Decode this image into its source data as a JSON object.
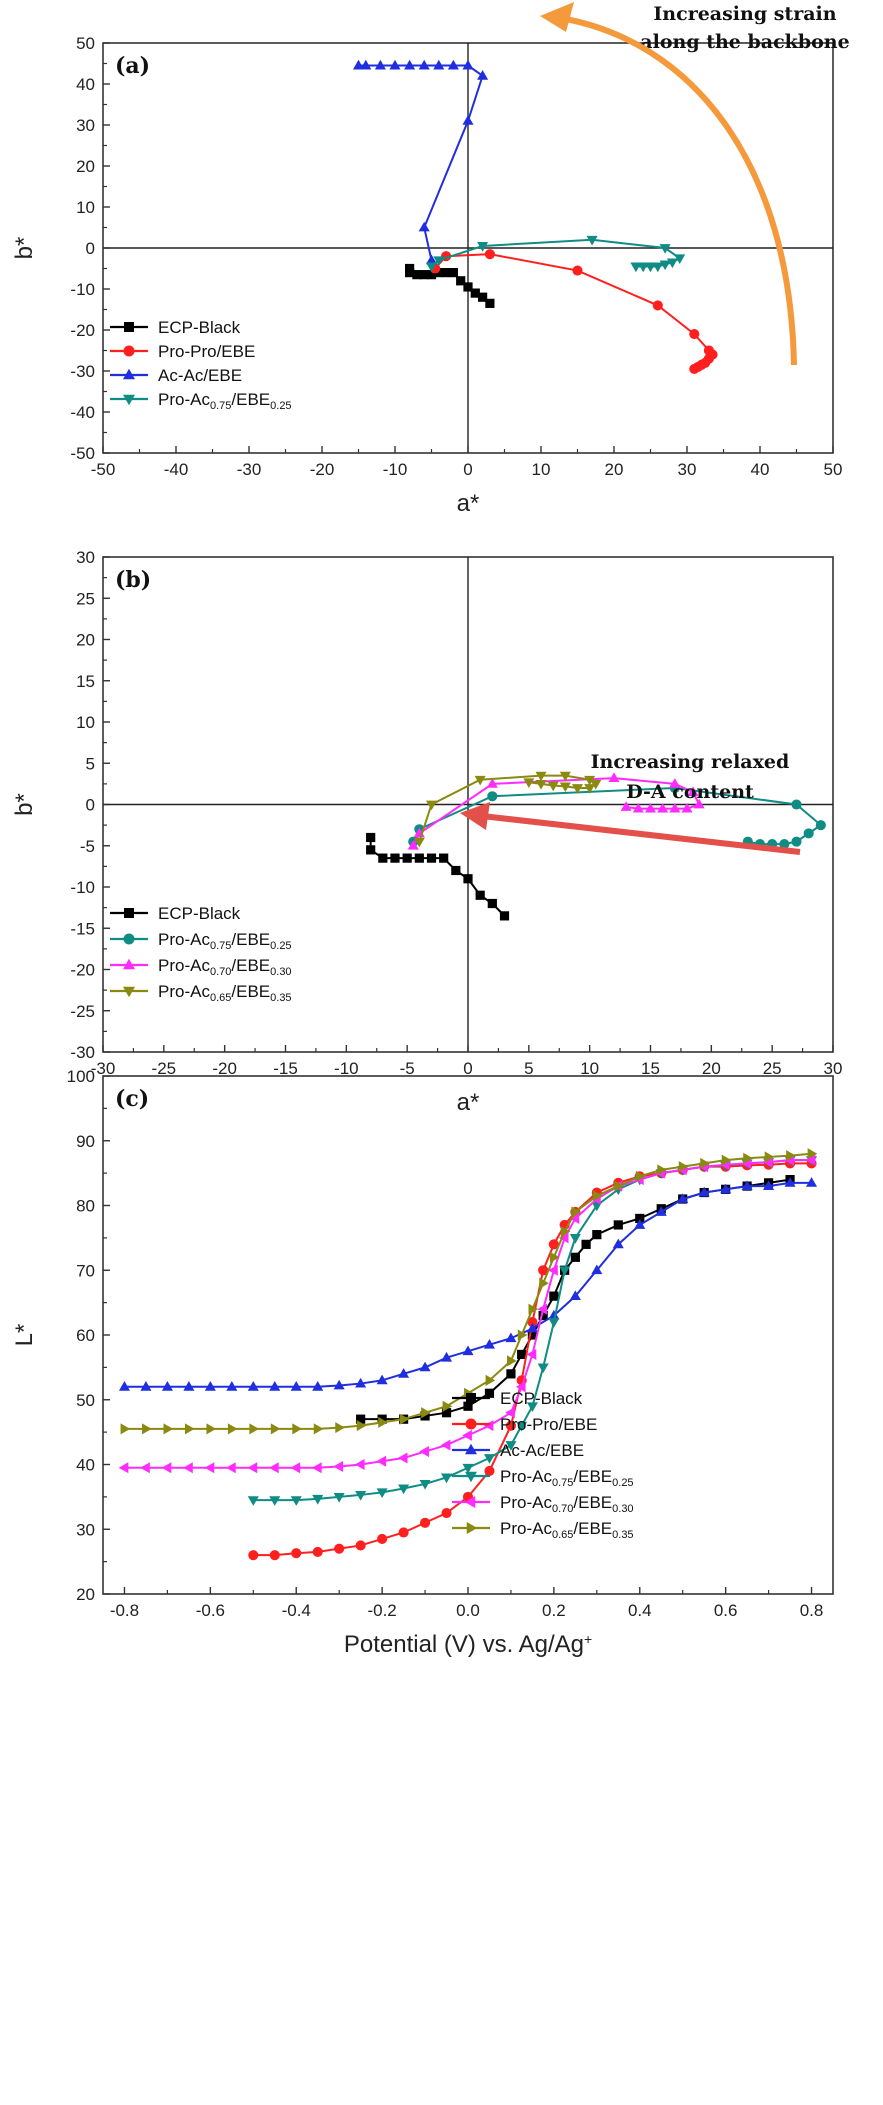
{
  "colors": {
    "ecp": "#000000",
    "pro_pro": "#ff1f1f",
    "ac_ac": "#1f2fe0",
    "pro_ac_75": "#0f8c84",
    "pro_ac_70": "#ff2bff",
    "pro_ac_65": "#8a8a10",
    "annot_arrow_a": "#f59a3c",
    "annot_arrow_b": "#e3504a"
  },
  "chart_data": [
    {
      "type": "scatter",
      "panel_label": "(a)",
      "xlabel": "a*",
      "ylabel": "b*",
      "xlim": [
        -50,
        50
      ],
      "ylim": [
        -50,
        50
      ],
      "xticks": [
        "-50",
        "-40",
        "-30",
        "-20",
        "-10",
        "0",
        "10",
        "20",
        "30",
        "40",
        "50"
      ],
      "yticks": [
        "50",
        "40",
        "30",
        "20",
        "10",
        "0",
        "-10",
        "-20",
        "-30",
        "-40",
        "-50"
      ],
      "annotation": [
        "Increasing strain",
        "along the backbone"
      ],
      "legend_position": "lower-left",
      "series": [
        {
          "key": "ecp",
          "name": "ECP-Black",
          "base": "ECP-Black",
          "sub1": "",
          "mid": "",
          "sub2": "",
          "marker": "square",
          "x": [
            -8,
            -8,
            -7,
            -6,
            -5,
            -4,
            -3,
            -2,
            -1,
            0,
            1,
            2,
            3
          ],
          "y": [
            -5,
            -6,
            -6.5,
            -6.5,
            -6.5,
            -6,
            -6,
            -6,
            -8,
            -9.5,
            -11,
            -12,
            -13.5
          ]
        },
        {
          "key": "pro_pro",
          "name": "Pro-Pro/EBE",
          "base": "Pro-Pro/EBE",
          "sub1": "",
          "mid": "",
          "sub2": "",
          "marker": "circle",
          "x": [
            -4.5,
            -3,
            3,
            15,
            26,
            31,
            33,
            33.5,
            33,
            32.5,
            32,
            31.5,
            31
          ],
          "y": [
            -5,
            -2,
            -1.5,
            -5.5,
            -14,
            -21,
            -25,
            -26,
            -27,
            -28,
            -28.5,
            -29,
            -29.5
          ]
        },
        {
          "key": "ac_ac",
          "name": "Ac-Ac/EBE",
          "base": "Ac-Ac/EBE",
          "sub1": "",
          "mid": "",
          "sub2": "",
          "marker": "triangle-up",
          "x": [
            -5,
            -6,
            0,
            2,
            0,
            -2,
            -4,
            -6,
            -8,
            -10,
            -12,
            -14,
            -15
          ],
          "y": [
            -3,
            5,
            31,
            42,
            44.5,
            44.5,
            44.5,
            44.5,
            44.5,
            44.5,
            44.5,
            44.5,
            44.5
          ]
        },
        {
          "key": "pro_ac_75",
          "name": "Pro-Ac0.75/EBE0.25",
          "base": "Pro-Ac",
          "sub1": "0.75",
          "mid": "/EBE",
          "sub2": "0.25",
          "marker": "triangle-down",
          "x": [
            -5,
            -4,
            2,
            17,
            27,
            29,
            28,
            27,
            26,
            25,
            24,
            23
          ],
          "y": [
            -4.5,
            -3,
            0.5,
            2,
            0,
            -2.5,
            -3.5,
            -4,
            -4.5,
            -4.5,
            -4.5,
            -4.5
          ]
        }
      ]
    },
    {
      "type": "scatter",
      "panel_label": "(b)",
      "xlabel": "a*",
      "ylabel": "b*",
      "xlim": [
        -30,
        30
      ],
      "ylim": [
        -30,
        30
      ],
      "xticks": [
        "-30",
        "-25",
        "-20",
        "-15",
        "-10",
        "-5",
        "0",
        "5",
        "10",
        "15",
        "20",
        "25",
        "30"
      ],
      "yticks": [
        "30",
        "25",
        "20",
        "15",
        "10",
        "5",
        "0",
        "-5",
        "-10",
        "-15",
        "-20",
        "-25",
        "-30"
      ],
      "annotation": [
        "Increasing relaxed",
        "D-A content"
      ],
      "legend_position": "lower-left",
      "series": [
        {
          "key": "ecp",
          "name": "ECP-Black",
          "base": "ECP-Black",
          "sub1": "",
          "mid": "",
          "sub2": "",
          "marker": "square",
          "x": [
            -8,
            -8,
            -7,
            -6,
            -5,
            -4,
            -3,
            -2,
            -1,
            0,
            1,
            2,
            3
          ],
          "y": [
            -4,
            -5.5,
            -6.5,
            -6.5,
            -6.5,
            -6.5,
            -6.5,
            -6.5,
            -8,
            -9,
            -11,
            -12,
            -13.5
          ]
        },
        {
          "key": "pro_ac_75",
          "name": "Pro-Ac0.75/EBE0.25",
          "base": "Pro-Ac",
          "sub1": "0.75",
          "mid": "/EBE",
          "sub2": "0.25",
          "marker": "circle",
          "x": [
            -4.5,
            -4,
            2,
            17,
            27,
            29,
            28,
            27,
            26,
            25,
            24,
            23
          ],
          "y": [
            -4.5,
            -3,
            1,
            2,
            0,
            -2.5,
            -3.5,
            -4.5,
            -4.8,
            -4.8,
            -4.8,
            -4.5
          ]
        },
        {
          "key": "pro_ac_70",
          "name": "Pro-Ac0.70/EBE0.30",
          "base": "Pro-Ac",
          "sub1": "0.70",
          "mid": "/EBE",
          "sub2": "0.30",
          "marker": "triangle-up",
          "x": [
            -4.5,
            -4,
            2,
            12,
            17,
            18.5,
            19,
            18,
            17,
            16,
            15,
            14,
            13
          ],
          "y": [
            -5,
            -3.5,
            2.5,
            3.2,
            2.5,
            1.5,
            0,
            -0.5,
            -0.5,
            -0.5,
            -0.5,
            -0.5,
            -0.3
          ]
        },
        {
          "key": "pro_ac_65",
          "name": "Pro-Ac0.65/EBE0.35",
          "base": "Pro-Ac",
          "sub1": "0.65",
          "mid": "/EBE",
          "sub2": "0.35",
          "marker": "triangle-down",
          "x": [
            -4,
            -3,
            1,
            6,
            8,
            10,
            10.5,
            10,
            9,
            8,
            7,
            6,
            5
          ],
          "y": [
            -4.5,
            0,
            3,
            3.5,
            3.5,
            3,
            2.5,
            2,
            2,
            2.2,
            2.3,
            2.5,
            2.7
          ]
        }
      ]
    },
    {
      "type": "line",
      "panel_label": "(c)",
      "xlabel": "Potential (V) vs. Ag/Ag",
      "xlabel_sup": "+",
      "ylabel": "L*",
      "xlim": [
        -0.85,
        0.85
      ],
      "ylim": [
        20,
        100
      ],
      "xticks": [
        "-0.8",
        "-0.6",
        "-0.4",
        "-0.2",
        "0.0",
        "0.2",
        "0.4",
        "0.6",
        "0.8"
      ],
      "yticks": [
        "100",
        "90",
        "80",
        "70",
        "60",
        "50",
        "40",
        "30",
        "20"
      ],
      "legend_position": "center-right",
      "series": [
        {
          "key": "ecp",
          "name": "ECP-Black",
          "base": "ECP-Black",
          "sub1": "",
          "mid": "",
          "sub2": "",
          "marker": "square",
          "x": [
            -0.25,
            -0.2,
            -0.15,
            -0.1,
            -0.05,
            0.0,
            0.05,
            0.1,
            0.125,
            0.15,
            0.175,
            0.2,
            0.225,
            0.25,
            0.275,
            0.3,
            0.35,
            0.4,
            0.45,
            0.5,
            0.55,
            0.6,
            0.65,
            0.7,
            0.75
          ],
          "y": [
            47,
            47,
            47,
            47.5,
            48,
            49,
            51,
            54,
            57,
            60,
            63,
            66,
            70,
            72,
            74,
            75.5,
            77,
            78,
            79.5,
            81,
            82,
            82.5,
            83,
            83.5,
            84
          ]
        },
        {
          "key": "pro_pro",
          "name": "Pro-Pro/EBE",
          "base": "Pro-Pro/EBE",
          "sub1": "",
          "mid": "",
          "sub2": "",
          "marker": "circle",
          "x": [
            -0.5,
            -0.45,
            -0.4,
            -0.35,
            -0.3,
            -0.25,
            -0.2,
            -0.15,
            -0.1,
            -0.05,
            0.0,
            0.05,
            0.1,
            0.125,
            0.15,
            0.175,
            0.2,
            0.225,
            0.25,
            0.3,
            0.35,
            0.4,
            0.45,
            0.5,
            0.55,
            0.6,
            0.65,
            0.7,
            0.75,
            0.8
          ],
          "y": [
            26,
            26,
            26.3,
            26.5,
            27,
            27.5,
            28.5,
            29.5,
            31,
            32.5,
            35,
            39,
            46,
            53,
            62,
            70,
            74,
            77,
            79,
            82,
            83.5,
            84.5,
            85,
            85.5,
            86,
            86,
            86.2,
            86.3,
            86.5,
            86.5
          ]
        },
        {
          "key": "ac_ac",
          "name": "Ac-Ac/EBE",
          "base": "Ac-Ac/EBE",
          "sub1": "",
          "mid": "",
          "sub2": "",
          "marker": "triangle-up",
          "x": [
            -0.8,
            -0.75,
            -0.7,
            -0.65,
            -0.6,
            -0.55,
            -0.5,
            -0.45,
            -0.4,
            -0.35,
            -0.3,
            -0.25,
            -0.2,
            -0.15,
            -0.1,
            -0.05,
            0.0,
            0.05,
            0.1,
            0.15,
            0.2,
            0.25,
            0.3,
            0.35,
            0.4,
            0.45,
            0.5,
            0.55,
            0.6,
            0.65,
            0.7,
            0.75,
            0.8
          ],
          "y": [
            52,
            52,
            52,
            52,
            52,
            52,
            52,
            52,
            52,
            52,
            52.2,
            52.5,
            53,
            54,
            55,
            56.5,
            57.5,
            58.5,
            59.5,
            61,
            63,
            66,
            70,
            74,
            77,
            79,
            81,
            82,
            82.5,
            83,
            83,
            83.5,
            83.5
          ]
        },
        {
          "key": "pro_ac_75",
          "name": "Pro-Ac0.75/EBE0.25",
          "base": "Pro-Ac",
          "sub1": "0.75",
          "mid": "/EBE",
          "sub2": "0.25",
          "marker": "triangle-down",
          "x": [
            -0.5,
            -0.45,
            -0.4,
            -0.35,
            -0.3,
            -0.25,
            -0.2,
            -0.15,
            -0.1,
            -0.05,
            0.0,
            0.05,
            0.1,
            0.125,
            0.15,
            0.175,
            0.2,
            0.225,
            0.25,
            0.3,
            0.35,
            0.4,
            0.45,
            0.5,
            0.55,
            0.6,
            0.65,
            0.7,
            0.75,
            0.8
          ],
          "y": [
            34.5,
            34.5,
            34.5,
            34.7,
            35,
            35.3,
            35.7,
            36.3,
            37,
            38,
            39.5,
            41,
            43,
            46,
            49,
            55,
            62,
            70,
            75,
            80,
            82.5,
            84,
            85,
            85.5,
            86,
            86.2,
            86.5,
            86.7,
            87,
            87
          ]
        },
        {
          "key": "pro_ac_70",
          "name": "Pro-Ac0.70/EBE0.30",
          "base": "Pro-Ac",
          "sub1": "0.70",
          "mid": "/EBE",
          "sub2": "0.30",
          "marker": "triangle-left",
          "x": [
            -0.8,
            -0.75,
            -0.7,
            -0.65,
            -0.6,
            -0.55,
            -0.5,
            -0.45,
            -0.4,
            -0.35,
            -0.3,
            -0.25,
            -0.2,
            -0.15,
            -0.1,
            -0.05,
            0.0,
            0.05,
            0.1,
            0.125,
            0.15,
            0.175,
            0.2,
            0.225,
            0.25,
            0.3,
            0.35,
            0.4,
            0.45,
            0.5,
            0.55,
            0.6,
            0.65,
            0.7,
            0.75,
            0.8
          ],
          "y": [
            39.5,
            39.5,
            39.5,
            39.5,
            39.5,
            39.5,
            39.5,
            39.5,
            39.5,
            39.5,
            39.7,
            40,
            40.5,
            41,
            42,
            43,
            44.5,
            46,
            48,
            52,
            57,
            64,
            70,
            75,
            78,
            81,
            83,
            84,
            85,
            85.5,
            86,
            86.3,
            86.5,
            86.7,
            87,
            87
          ]
        },
        {
          "key": "pro_ac_65",
          "name": "Pro-Ac0.65/EBE0.35",
          "base": "Pro-Ac",
          "sub1": "0.65",
          "mid": "/EBE",
          "sub2": "0.35",
          "marker": "triangle-right",
          "x": [
            -0.8,
            -0.75,
            -0.7,
            -0.65,
            -0.6,
            -0.55,
            -0.5,
            -0.45,
            -0.4,
            -0.35,
            -0.3,
            -0.25,
            -0.2,
            -0.15,
            -0.1,
            -0.05,
            0.0,
            0.05,
            0.1,
            0.125,
            0.15,
            0.175,
            0.2,
            0.225,
            0.25,
            0.3,
            0.35,
            0.4,
            0.45,
            0.5,
            0.55,
            0.6,
            0.65,
            0.7,
            0.75,
            0.8
          ],
          "y": [
            45.5,
            45.5,
            45.5,
            45.5,
            45.5,
            45.5,
            45.5,
            45.5,
            45.5,
            45.5,
            45.7,
            46,
            46.5,
            47,
            48,
            49,
            51,
            53,
            56,
            60,
            64,
            68,
            72,
            76,
            79,
            81.5,
            83,
            84.5,
            85.5,
            86,
            86.5,
            87,
            87.3,
            87.5,
            87.7,
            88
          ]
        }
      ]
    }
  ]
}
